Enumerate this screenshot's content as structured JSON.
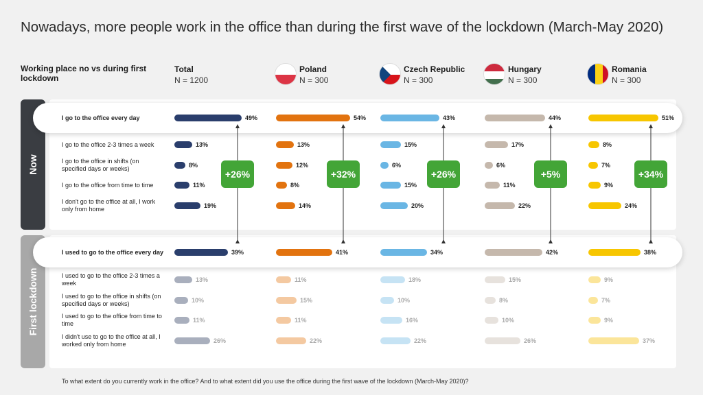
{
  "title": "Nowadays, more people work in the office than during the first wave of the lockdown (March-May 2020)",
  "side_header": "Working place no vs during first lockdown",
  "footnote": "To what extent do you currently work in the office? And to what extent did you use the office during the first wave of the lockdown (March-May 2020)?",
  "sections": {
    "now": "Now",
    "first": "First  lockdown"
  },
  "colors": {
    "now_section": "#3a3d42",
    "first_section": "#a8a8a8",
    "badge": "#43a537"
  },
  "columns": [
    {
      "name": "Total",
      "n": "N = 1200",
      "color": "#2a3e6c",
      "faded": "#a9afbd",
      "flag": ""
    },
    {
      "name": "Poland",
      "n": "N = 300",
      "color": "#e2730f",
      "faded": "#f4c9a1",
      "flag": "poland-flag-icon"
    },
    {
      "name": "Czech Republic",
      "n": "N = 300",
      "color": "#6ab6e4",
      "faded": "#c6e3f4",
      "flag": "czech-flag-icon"
    },
    {
      "name": "Hungary",
      "n": "N = 300",
      "color": "#c5b8ac",
      "faded": "#e7e2dd",
      "flag": "hungary-flag-icon"
    },
    {
      "name": "Romania",
      "n": "N = 300",
      "color": "#f7c600",
      "faded": "#fbe59a",
      "flag": "romania-flag-icon"
    }
  ],
  "chart_data": {
    "type": "bar",
    "unit": "%",
    "now": {
      "rows": [
        {
          "label": "I go to the office every day",
          "values": [
            49,
            54,
            43,
            44,
            51
          ]
        },
        {
          "label": "I go to the office 2-3 times a week",
          "values": [
            13,
            13,
            15,
            17,
            8
          ]
        },
        {
          "label": "I go to the office in shifts (on specified days or weeks)",
          "values": [
            8,
            12,
            6,
            6,
            7
          ]
        },
        {
          "label": "I go to the office from time to time",
          "values": [
            11,
            8,
            15,
            11,
            9
          ]
        },
        {
          "label": "I don't go to the office at all, I work only from home",
          "values": [
            19,
            14,
            20,
            22,
            24
          ]
        }
      ]
    },
    "first_lockdown": {
      "rows": [
        {
          "label": "I used to go to the office every day",
          "values": [
            39,
            41,
            34,
            42,
            38
          ]
        },
        {
          "label": "I used to go to the office 2-3 times a week",
          "values": [
            13,
            11,
            18,
            15,
            9
          ]
        },
        {
          "label": "I used to go to the office in shifts (on specified days or weeks)",
          "values": [
            10,
            15,
            10,
            8,
            7
          ]
        },
        {
          "label": "I used to go to the office from time to time",
          "values": [
            11,
            11,
            16,
            10,
            9
          ]
        },
        {
          "label": "I didn't use to go to the office at all, I worked only from home",
          "values": [
            26,
            22,
            22,
            26,
            37
          ]
        }
      ]
    },
    "changes": [
      "+26%",
      "+32%",
      "+26%",
      "+5%",
      "+34%"
    ]
  }
}
